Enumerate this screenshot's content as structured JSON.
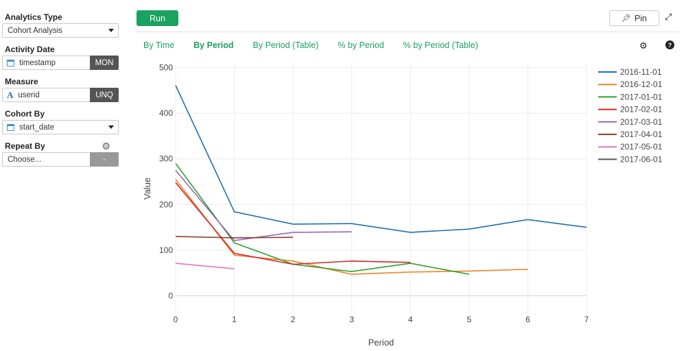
{
  "sidebar": {
    "analytics_type": {
      "label": "Analytics Type",
      "value": "Cohort Analysis"
    },
    "activity_date": {
      "label": "Activity Date",
      "value": "timestamp",
      "tag": "MON"
    },
    "measure": {
      "label": "Measure",
      "value": "userid",
      "tag": "UNQ",
      "type_glyph": "A"
    },
    "cohort_by": {
      "label": "Cohort By",
      "value": "start_date"
    },
    "repeat_by": {
      "label": "Repeat By",
      "placeholder": "Choose...",
      "tag": "-"
    }
  },
  "toolbar": {
    "run_label": "Run",
    "pin_label": "Pin"
  },
  "tabs": [
    {
      "label": "By Time",
      "active": false
    },
    {
      "label": "By Period",
      "active": true
    },
    {
      "label": "By Period (Table)",
      "active": false
    },
    {
      "label": "% by Period",
      "active": false
    },
    {
      "label": "% by Period (Table)",
      "active": false
    }
  ],
  "colors": {
    "accent": "#1aa260"
  },
  "icons": {
    "settings": "gear-icon",
    "help": "help-icon",
    "expand": "expand-icon",
    "pin": "pin-icon",
    "calendar": "calendar-icon"
  },
  "chart_data": {
    "type": "line",
    "xlabel": "Period",
    "ylabel": "Value",
    "xlim": [
      0,
      7
    ],
    "ylim": [
      -40,
      510
    ],
    "x_ticks": [
      0,
      1,
      2,
      3,
      4,
      5,
      6,
      7
    ],
    "y_ticks": [
      0,
      100,
      200,
      300,
      400,
      500
    ],
    "grid": true,
    "legend_position": "right",
    "series": [
      {
        "name": "2016-11-01",
        "color": "#1f6fb4",
        "x": [
          0,
          1,
          2,
          3,
          4,
          5,
          6,
          7
        ],
        "y": [
          461,
          184,
          157,
          158,
          139,
          146,
          167,
          150
        ]
      },
      {
        "name": "2016-12-01",
        "color": "#f28124",
        "x": [
          0,
          1,
          2,
          3,
          4,
          5,
          6
        ],
        "y": [
          255,
          89,
          76,
          47,
          52,
          54,
          58
        ]
      },
      {
        "name": "2017-01-01",
        "color": "#2ca02c",
        "x": [
          0,
          1,
          2,
          3,
          4,
          5
        ],
        "y": [
          290,
          116,
          69,
          53,
          71,
          47
        ]
      },
      {
        "name": "2017-02-01",
        "color": "#d62728",
        "x": [
          0,
          1,
          2,
          3,
          4
        ],
        "y": [
          248,
          93,
          69,
          76,
          73
        ]
      },
      {
        "name": "2017-03-01",
        "color": "#9467bd",
        "x": [
          0,
          1,
          2,
          3
        ],
        "y": [
          275,
          121,
          139,
          140
        ]
      },
      {
        "name": "2017-04-01",
        "color": "#8c4028",
        "x": [
          0,
          1,
          2
        ],
        "y": [
          130,
          127,
          128
        ]
      },
      {
        "name": "2017-05-01",
        "color": "#e377c2",
        "x": [
          0,
          1
        ],
        "y": [
          71,
          59
        ]
      },
      {
        "name": "2017-06-01",
        "color": "#555555",
        "x": [],
        "y": []
      }
    ]
  }
}
